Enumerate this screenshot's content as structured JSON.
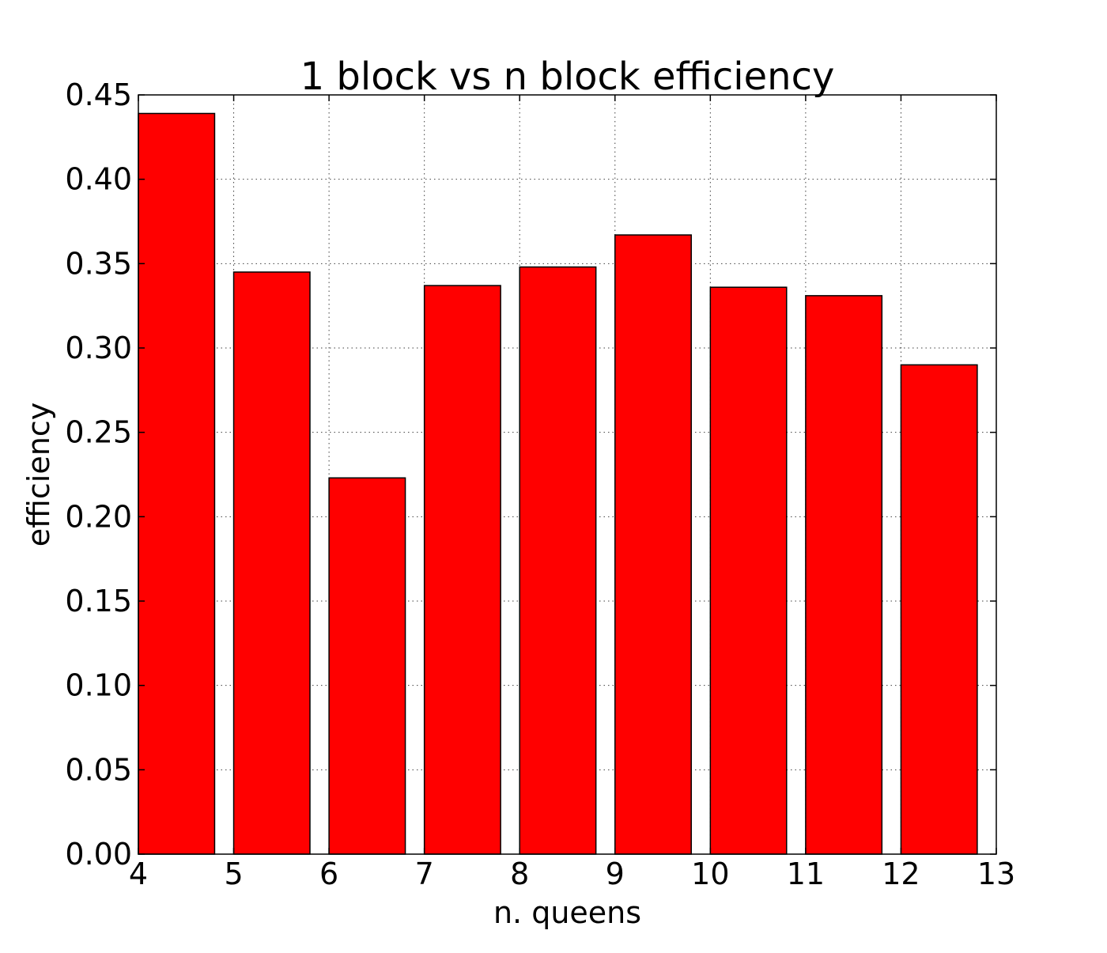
{
  "chart_data": {
    "type": "bar",
    "title": "1 block vs n block efficiency",
    "xlabel": "n. queens",
    "ylabel": "efficiency",
    "categories": [
      "4",
      "5",
      "6",
      "7",
      "8",
      "9",
      "10",
      "11",
      "12"
    ],
    "x": [
      4,
      5,
      6,
      7,
      8,
      9,
      10,
      11,
      12
    ],
    "values": [
      0.439,
      0.345,
      0.223,
      0.337,
      0.348,
      0.367,
      0.336,
      0.331,
      0.29
    ],
    "bar_width": 0.8,
    "bar_align": "edge",
    "bar_color": "#ff0000",
    "xlim": [
      4,
      13
    ],
    "ylim": [
      0,
      0.45
    ],
    "xticks": [
      4,
      5,
      6,
      7,
      8,
      9,
      10,
      11,
      12,
      13
    ],
    "xtick_labels": [
      "4",
      "5",
      "6",
      "7",
      "8",
      "9",
      "10",
      "11",
      "12",
      "13"
    ],
    "yticks": [
      0,
      0.05,
      0.1,
      0.15,
      0.2,
      0.25,
      0.3,
      0.35,
      0.4,
      0.45
    ],
    "ytick_labels": [
      "0.00",
      "0.05",
      "0.10",
      "0.15",
      "0.20",
      "0.25",
      "0.30",
      "0.35",
      "0.40",
      "0.45"
    ],
    "grid": true,
    "legend": false
  }
}
